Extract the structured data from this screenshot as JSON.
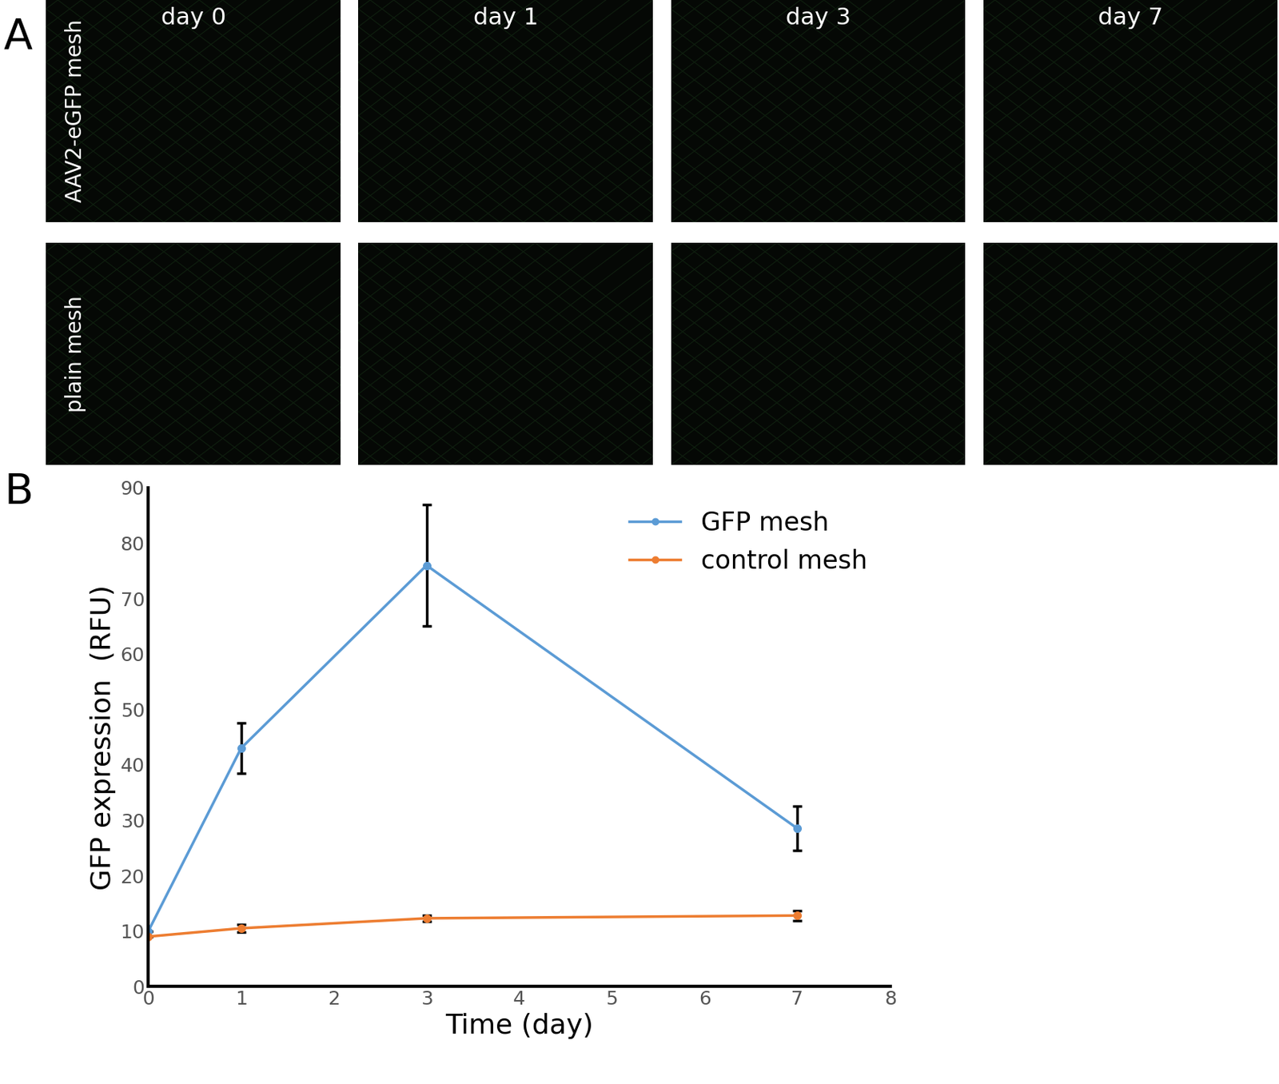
{
  "image_panel": {
    "label": "A",
    "rows": [
      "AAV2-eGFP mesh",
      "plain mesh"
    ],
    "columns": [
      "day 0",
      "day 1",
      "day 3",
      "day 7"
    ]
  },
  "chart_data": {
    "label": "B",
    "type": "line",
    "x_label": "Time (day)",
    "y_label": "GFP expression  (RFU)",
    "x": [
      0,
      1,
      3,
      7
    ],
    "series": [
      {
        "name": "GFP mesh",
        "color": "#5b9bd5",
        "marker": "o",
        "values": [
          10,
          43,
          76,
          28.5
        ],
        "error": [
          0,
          4.5,
          11,
          4
        ]
      },
      {
        "name": "control mesh",
        "color": "#ed7d31",
        "marker": "o",
        "values": [
          9,
          10.5,
          12.3,
          12.8
        ],
        "error": [
          0,
          0.7,
          0.5,
          0.9
        ]
      }
    ],
    "xlim": [
      0,
      8
    ],
    "xticks": [
      0,
      1,
      2,
      3,
      4,
      5,
      6,
      7,
      8
    ],
    "ylim": [
      0,
      90
    ],
    "yticks": [
      0,
      10,
      20,
      30,
      40,
      50,
      60,
      70,
      80,
      90
    ],
    "legend": "upper right"
  }
}
